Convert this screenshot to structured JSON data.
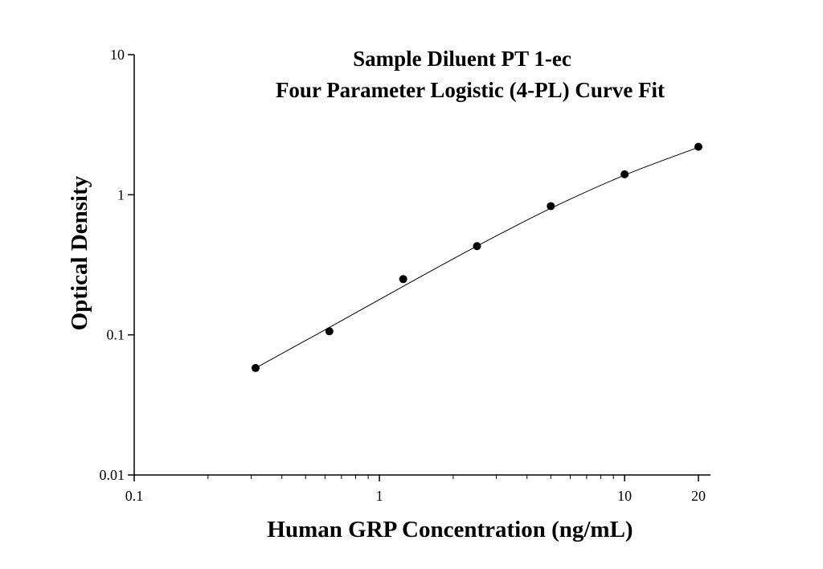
{
  "chart_data": {
    "type": "scatter",
    "title": "Sample Diluent PT 1-ec",
    "subtitle": "Four Parameter Logistic (4-PL) Curve Fit",
    "x_label": "Human GRP Concentration (ng/mL)",
    "y_label": "Optical Density",
    "xscale": "log",
    "yscale": "log",
    "xlim": [
      0.1,
      22.4
    ],
    "ylim": [
      0.01,
      10
    ],
    "xticks": [
      0.1,
      1,
      10,
      20
    ],
    "xminorticks": [
      0.2,
      0.3,
      0.4,
      0.5,
      0.6,
      0.7,
      0.8,
      0.9,
      2,
      3,
      4,
      5,
      6,
      7,
      8,
      9
    ],
    "yticks": [
      0.01,
      0.1,
      1,
      10
    ],
    "series": [
      {
        "mode": "markers",
        "color": "#000000",
        "x": [
          0.3125,
          0.625,
          1.25,
          2.5,
          5,
          10,
          20
        ],
        "values": [
          0.058,
          0.106,
          0.25,
          0.43,
          0.83,
          1.4,
          2.2
        ]
      },
      {
        "mode": "line",
        "color": "#000000",
        "x": [
          0.3125,
          0.625,
          1.25,
          2.5,
          5,
          10,
          20
        ],
        "values": [
          0.058,
          0.113,
          0.222,
          0.43,
          0.8,
          1.38,
          2.18
        ]
      }
    ]
  }
}
